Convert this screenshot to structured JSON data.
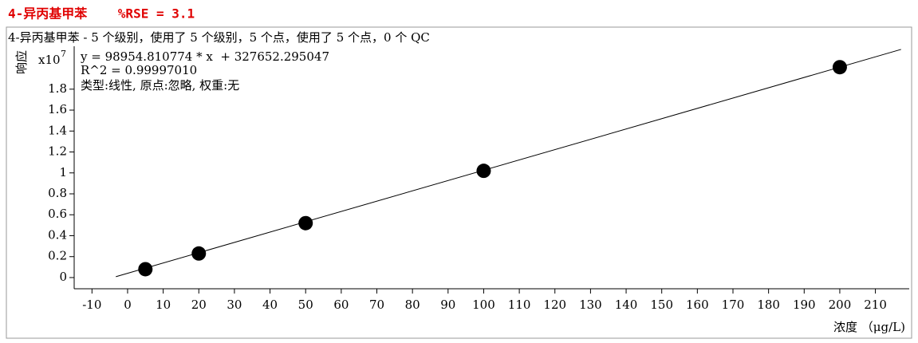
{
  "chart_data": {
    "type": "scatter",
    "title": "4-异丙基甲苯    %RSE = 3.1",
    "subtitle": "4-异丙基甲苯 - 5 个级别，使用了 5 个级别，5 个点，使用了 5 个点，0 个 QC",
    "y_label": "响应",
    "y_multiplier": {
      "base": "x10",
      "exponent": "7"
    },
    "x_label": "浓度 （μg/L)",
    "annotations": [
      "y = 98954.810774 * x  + 327652.295047",
      "R^2 = 0.99997010",
      "类型:线性, 原点:忽略, 权重:无"
    ],
    "x": [
      5,
      20,
      50,
      100,
      200
    ],
    "values": [
      0.08,
      0.23,
      0.52,
      1.02,
      2.01
    ],
    "color": "#000000",
    "fit_line": {
      "x": [
        -3.3,
        217.2
      ],
      "y": [
        0.008,
        2.18
      ],
      "color": "#000000"
    },
    "xlim": [
      -15,
      219.5
    ],
    "ylim": [
      -0.107,
      2.21
    ],
    "xticks": [
      -10,
      0,
      10,
      20,
      30,
      40,
      50,
      60,
      70,
      80,
      90,
      100,
      110,
      120,
      130,
      140,
      150,
      160,
      170,
      180,
      190,
      200,
      210
    ],
    "yticks": [
      0,
      0.2,
      0.4,
      0.6,
      0.8,
      1,
      1.2,
      1.4,
      1.6,
      1.8
    ]
  }
}
